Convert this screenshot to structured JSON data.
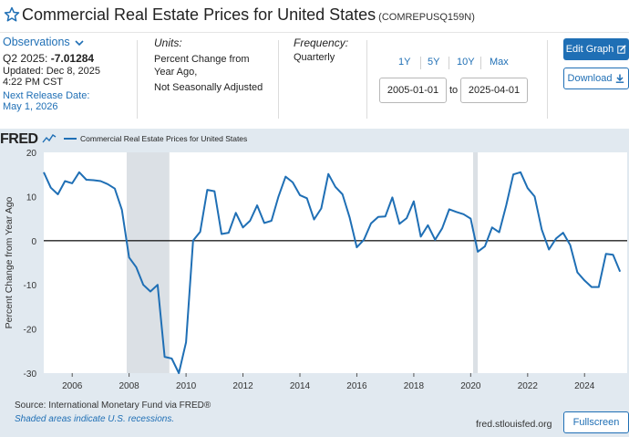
{
  "header": {
    "title": "Commercial Real Estate Prices for United States",
    "series_id": "(COMREPUSQ159N)"
  },
  "observations": {
    "link_label": "Observations",
    "period_label": "Q2 2025:",
    "value": "-7.01284",
    "updated_line1": "Updated: Dec 8, 2025",
    "updated_line2": "4:22 PM CST",
    "next_release_label": "Next Release Date:",
    "next_release_date": "May 1, 2026"
  },
  "units": {
    "label": "Units:",
    "line1": "Percent Change from",
    "line2": "Year Ago,",
    "line3": "Not Seasonally Adjusted"
  },
  "frequency": {
    "label": "Frequency:",
    "value": "Quarterly"
  },
  "ranges": [
    "1Y",
    "5Y",
    "10Y",
    "Max"
  ],
  "date_range": {
    "start": "2005-01-01",
    "to_label": "to",
    "end": "2025-04-01"
  },
  "buttons": {
    "edit_graph": "Edit Graph",
    "download": "Download",
    "fullscreen": "Fullscreen"
  },
  "logo": "FRED",
  "footer": {
    "source": "Source: International Monetary Fund via FRED®",
    "shaded_note": "Shaded areas indicate U.S. recessions.",
    "url": "fred.stlouisfed.org"
  },
  "colors": {
    "accent": "#1f6fb5",
    "series": "#1f6fb5",
    "recession": "#cfd5dc",
    "chart_bg": "#e1e9f0"
  },
  "chart_data": {
    "type": "line",
    "xlabel": "",
    "ylabel": "Percent Change from Year Ago",
    "ylim": [
      -30,
      20
    ],
    "xlim": [
      "2005-01-01",
      "2025-07-01"
    ],
    "y_ticks": [
      "20",
      "10",
      "0",
      "-10",
      "-20",
      "-30"
    ],
    "x_ticks": [
      "2006",
      "2008",
      "2010",
      "2012",
      "2014",
      "2016",
      "2018",
      "2020",
      "2022",
      "2024"
    ],
    "grid": "horizontal-zero-line",
    "legend": "top-left",
    "recessions": [
      [
        "2007-12-01",
        "2009-06-01"
      ],
      [
        "2020-02-01",
        "2020-04-01"
      ]
    ],
    "series": [
      {
        "name": "Commercial Real Estate Prices for United States",
        "x": [
          "2005-01-01",
          "2005-04-01",
          "2005-07-01",
          "2005-10-01",
          "2006-01-01",
          "2006-04-01",
          "2006-07-01",
          "2006-10-01",
          "2007-01-01",
          "2007-04-01",
          "2007-07-01",
          "2007-10-01",
          "2008-01-01",
          "2008-04-01",
          "2008-07-01",
          "2008-10-01",
          "2009-01-01",
          "2009-04-01",
          "2009-07-01",
          "2009-10-01",
          "2010-01-01",
          "2010-04-01",
          "2010-07-01",
          "2010-10-01",
          "2011-01-01",
          "2011-04-01",
          "2011-07-01",
          "2011-10-01",
          "2012-01-01",
          "2012-04-01",
          "2012-07-01",
          "2012-10-01",
          "2013-01-01",
          "2013-04-01",
          "2013-07-01",
          "2013-10-01",
          "2014-01-01",
          "2014-04-01",
          "2014-07-01",
          "2014-10-01",
          "2015-01-01",
          "2015-04-01",
          "2015-07-01",
          "2015-10-01",
          "2016-01-01",
          "2016-04-01",
          "2016-07-01",
          "2016-10-01",
          "2017-01-01",
          "2017-04-01",
          "2017-07-01",
          "2017-10-01",
          "2018-01-01",
          "2018-04-01",
          "2018-07-01",
          "2018-10-01",
          "2019-01-01",
          "2019-04-01",
          "2019-07-01",
          "2019-10-01",
          "2020-01-01",
          "2020-04-01",
          "2020-07-01",
          "2020-10-01",
          "2021-01-01",
          "2021-04-01",
          "2021-07-01",
          "2021-10-01",
          "2022-01-01",
          "2022-04-01",
          "2022-07-01",
          "2022-10-01",
          "2023-01-01",
          "2023-04-01",
          "2023-07-01",
          "2023-10-01",
          "2024-01-01",
          "2024-04-01",
          "2024-07-01",
          "2024-10-01",
          "2025-01-01",
          "2025-04-01"
        ],
        "values": [
          15.5,
          12.0,
          10.5,
          13.5,
          13.0,
          15.5,
          13.8,
          13.7,
          13.5,
          12.8,
          11.8,
          7.0,
          -3.8,
          -6.0,
          -10.0,
          -11.5,
          -10.0,
          -26.3,
          -26.7,
          -30.0,
          -23.0,
          0.0,
          2.0,
          11.5,
          11.2,
          1.5,
          1.8,
          6.3,
          3.0,
          4.5,
          8.0,
          4.0,
          4.5,
          10.0,
          14.5,
          13.2,
          10.3,
          9.6,
          4.8,
          7.3,
          15.1,
          12.2,
          10.5,
          5.2,
          -1.5,
          0.2,
          3.9,
          5.4,
          5.5,
          9.8,
          3.8,
          5.1,
          8.9,
          0.9,
          3.5,
          0.2,
          2.8,
          7.1,
          6.5,
          6.0,
          5.0,
          -2.5,
          -1.3,
          3.0,
          1.9,
          8.0,
          15.0,
          15.5,
          11.9,
          10.0,
          2.5,
          -2.0,
          0.5,
          1.8,
          -1.0,
          -7.2,
          -9.0,
          -10.5,
          -10.5,
          -3.0,
          -3.2,
          -7.0
        ]
      }
    ]
  }
}
